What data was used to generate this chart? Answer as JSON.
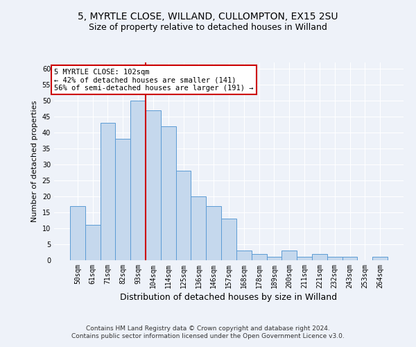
{
  "title1": "5, MYRTLE CLOSE, WILLAND, CULLOMPTON, EX15 2SU",
  "title2": "Size of property relative to detached houses in Willand",
  "xlabel": "Distribution of detached houses by size in Willand",
  "ylabel": "Number of detached properties",
  "categories": [
    "50sqm",
    "61sqm",
    "71sqm",
    "82sqm",
    "93sqm",
    "104sqm",
    "114sqm",
    "125sqm",
    "136sqm",
    "146sqm",
    "157sqm",
    "168sqm",
    "178sqm",
    "189sqm",
    "200sqm",
    "211sqm",
    "221sqm",
    "232sqm",
    "243sqm",
    "253sqm",
    "264sqm"
  ],
  "values": [
    17,
    11,
    43,
    38,
    50,
    47,
    42,
    28,
    20,
    17,
    13,
    3,
    2,
    1,
    3,
    1,
    2,
    1,
    1,
    0,
    1
  ],
  "bar_color": "#c5d8ed",
  "bar_edge_color": "#5b9bd5",
  "vline_index": 5,
  "vline_color": "#cc0000",
  "annotation_text": "5 MYRTLE CLOSE: 102sqm\n← 42% of detached houses are smaller (141)\n56% of semi-detached houses are larger (191) →",
  "annotation_box_color": "#ffffff",
  "annotation_box_edge": "#cc0000",
  "ylim": [
    0,
    62
  ],
  "yticks": [
    0,
    5,
    10,
    15,
    20,
    25,
    30,
    35,
    40,
    45,
    50,
    55,
    60
  ],
  "footer1": "Contains HM Land Registry data © Crown copyright and database right 2024.",
  "footer2": "Contains public sector information licensed under the Open Government Licence v3.0.",
  "bg_color": "#eef2f9",
  "plot_bg_color": "#eef2f9",
  "grid_color": "#ffffff",
  "title1_fontsize": 10,
  "title2_fontsize": 9,
  "xlabel_fontsize": 9,
  "ylabel_fontsize": 8,
  "tick_fontsize": 7,
  "annot_fontsize": 7.5,
  "footer_fontsize": 6.5
}
